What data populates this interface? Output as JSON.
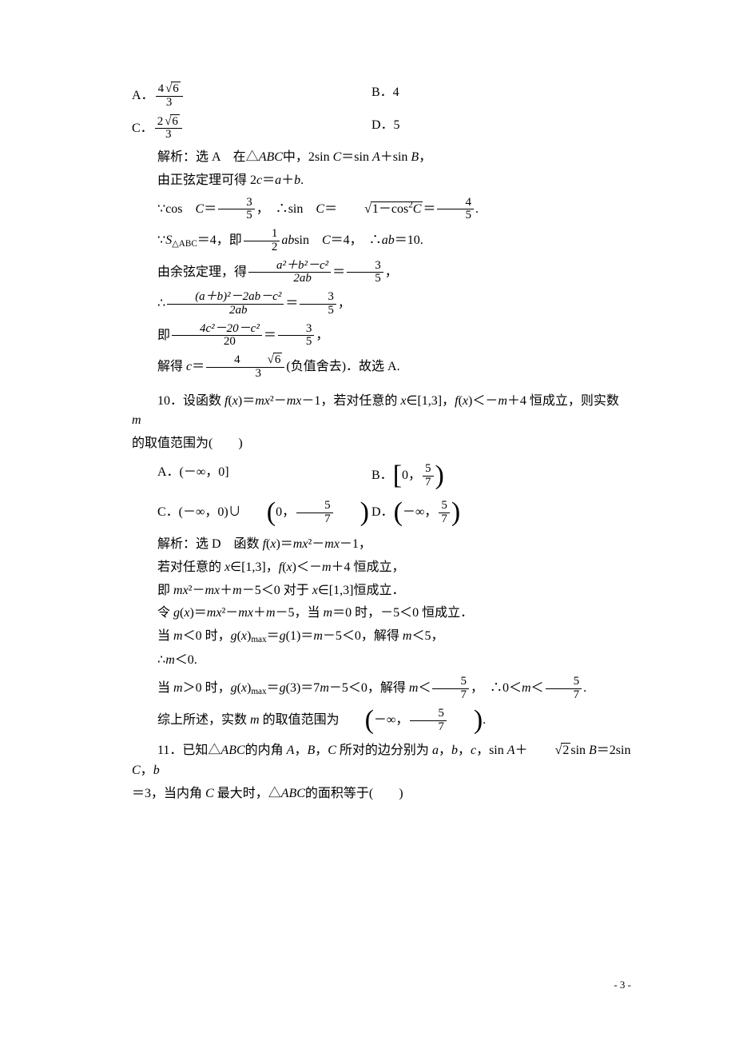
{
  "q9": {
    "opts": {
      "A_label": "A．",
      "A_num": "4",
      "A_rad": "6",
      "A_den": "3",
      "B": "B．4",
      "C_label": "C．",
      "C_num": "2",
      "C_rad": "6",
      "C_den": "3",
      "D": "D．5"
    },
    "l1_a": "解析：选 A　在△",
    "l1_b": "ABC",
    "l1_c": "中，2sin ",
    "l1_d": "C",
    "l1_e": "＝sin ",
    "l1_f": "A",
    "l1_g": "＋sin ",
    "l1_h": "B",
    "l1_i": "，",
    "l2_a": "由正弦定理可得 2",
    "l2_b": "c",
    "l2_c": "＝",
    "l2_d": "a",
    "l2_e": "＋",
    "l2_f": "b",
    "l2_g": ".",
    "l3_a": "∵cos　",
    "l3_b": "C",
    "l3_c": "＝",
    "l3_num": "3",
    "l3_den": "5",
    "l3_d": "，　∴sin　",
    "l3_e": "C",
    "l3_f": "＝",
    "l3_rad": "1－cos",
    "l3_sup": "2",
    "l3_g": "C",
    "l3_h": "＝",
    "l3_num2": "4",
    "l3_den2": "5",
    "l3_i": ".",
    "l4_a": "∵",
    "l4_S": "S",
    "l4_sub": "△ABC",
    "l4_b": "＝4，即",
    "l4_num": "1",
    "l4_den": "2",
    "l4_c": "ab",
    "l4_d": "sin　",
    "l4_e": "C",
    "l4_f": "＝4，　∴",
    "l4_g": "ab",
    "l4_h": "＝10.",
    "l5_a": "由余弦定理，得",
    "l5_num": "a²＋b²－c²",
    "l5_den": "2ab",
    "l5_b": "＝",
    "l5_num2": "3",
    "l5_den2": "5",
    "l5_c": "，",
    "l6_a": "∴",
    "l6_num": "(a＋b)²－2ab－c²",
    "l6_den": "2ab",
    "l6_b": "＝",
    "l6_num2": "3",
    "l6_den2": "5",
    "l6_c": "，",
    "l7_a": "即",
    "l7_num": "4c²－20－c²",
    "l7_den": "20",
    "l7_b": "＝",
    "l7_num2": "3",
    "l7_den2": "5",
    "l7_c": "，",
    "l8_a": "解得 ",
    "l8_b": "c",
    "l8_c": "＝",
    "l8_num": "4",
    "l8_rad": "6",
    "l8_den": "3",
    "l8_d": "(负值舍去)．故选 A."
  },
  "q10": {
    "head_a": "10．设函数 ",
    "head_b": "f",
    "head_c": "(",
    "head_d": "x",
    "head_e": ")＝",
    "head_f": "mx",
    "head_g": "²－",
    "head_h": "mx",
    "head_i": "－1，若对任意的 ",
    "head_j": "x",
    "head_k": "∈[1,3]，",
    "head_l": "f",
    "head_m": "(",
    "head_n": "x",
    "head_o": ")＜－",
    "head_p": "m",
    "head_q": "＋4 恒成立，则实数 ",
    "head_r": "m",
    "head2": "的取值范围为(　　)",
    "optA": "A．(－∞，0]",
    "optB_a": "B．",
    "optB_b": "0，",
    "optB_num": "5",
    "optB_den": "7",
    "optC_a": "C．(－∞，0)∪",
    "optC_b": "0，",
    "optC_num": "5",
    "optC_den": "7",
    "optD_a": "D．",
    "optD_b": "－∞，",
    "optD_num": "5",
    "optD_den": "7",
    "l1_a": "解析：选 D　函数 ",
    "l1_b": "f",
    "l1_c": "(",
    "l1_d": "x",
    "l1_e": ")＝",
    "l1_f": "mx",
    "l1_g": "²－",
    "l1_h": "mx",
    "l1_i": "－1，",
    "l2_a": "若对任意的 ",
    "l2_b": "x",
    "l2_c": "∈[1,3]，",
    "l2_d": "f",
    "l2_e": "(",
    "l2_f": "x",
    "l2_g": ")＜－",
    "l2_h": "m",
    "l2_i": "＋4 恒成立，",
    "l3_a": "即 ",
    "l3_b": "mx",
    "l3_c": "²－",
    "l3_d": "mx",
    "l3_e": "＋",
    "l3_f": "m",
    "l3_g": "－5＜0 对于 ",
    "l3_h": "x",
    "l3_i": "∈[1,3]恒成立．",
    "l4_a": "令 ",
    "l4_b": "g",
    "l4_c": "(",
    "l4_d": "x",
    "l4_e": ")＝",
    "l4_f": "mx",
    "l4_g": "²－",
    "l4_h": "mx",
    "l4_i": "＋",
    "l4_j": "m",
    "l4_k": "－5，当 ",
    "l4_l": "m",
    "l4_m": "＝0 时，－5＜0 恒成立．",
    "l5_a": "当 ",
    "l5_b": "m",
    "l5_c": "＜0 时，",
    "l5_d": "g",
    "l5_e": "(",
    "l5_f": "x",
    "l5_g": ")",
    "l5_sub": "max",
    "l5_h": "＝",
    "l5_i": "g",
    "l5_j": "(1)＝",
    "l5_k": "m",
    "l5_l": "－5＜0，解得 ",
    "l5_m": "m",
    "l5_n": "＜5，",
    "l6_a": "∴",
    "l6_b": "m",
    "l6_c": "＜0.",
    "l7_a": "当 ",
    "l7_b": "m",
    "l7_c": "＞0 时，",
    "l7_d": "g",
    "l7_e": "(",
    "l7_f": "x",
    "l7_g": ")",
    "l7_sub": "max",
    "l7_h": "＝",
    "l7_i": "g",
    "l7_j": "(3)＝7",
    "l7_k": "m",
    "l7_l": "－5＜0，解得 ",
    "l7_m": "m",
    "l7_n": "＜",
    "l7_num": "5",
    "l7_den": "7",
    "l7_o": "，　∴0＜",
    "l7_p": "m",
    "l7_q": "＜",
    "l7_num2": "5",
    "l7_den2": "7",
    "l7_r": ".",
    "l8_a": "综上所述，实数 ",
    "l8_b": "m",
    "l8_c": " 的取值范围为",
    "l8_d": "－∞，",
    "l8_num": "5",
    "l8_den": "7",
    "l8_e": "."
  },
  "q11": {
    "l1_a": "11．已知△",
    "l1_b": "ABC",
    "l1_c": "的内角 ",
    "l1_d": "A",
    "l1_e": "，",
    "l1_f": "B",
    "l1_g": "，",
    "l1_h": "C",
    "l1_i": " 所对的边分别为 ",
    "l1_j": "a",
    "l1_k": "，",
    "l1_l": "b",
    "l1_m": "，",
    "l1_n": "c",
    "l1_o": "，sin ",
    "l1_p": "A",
    "l1_q": "＋",
    "l1_rad": "2",
    "l1_r": "sin ",
    "l1_s": "B",
    "l1_t": "＝2sin ",
    "l1_u": "C",
    "l1_v": "，",
    "l1_w": "b",
    "l2_a": "＝3，当内角 ",
    "l2_b": "C",
    "l2_c": " 最大时，△",
    "l2_d": "ABC",
    "l2_e": "的面积等于(　　)"
  },
  "pagenum": "- 3 -"
}
